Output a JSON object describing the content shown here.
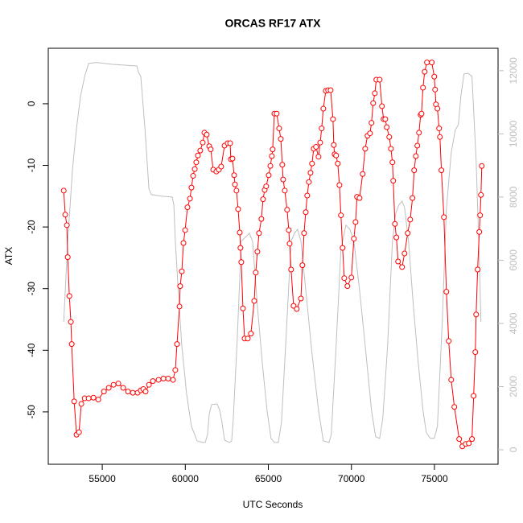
{
  "chart_data": {
    "type": "line",
    "title": "ORCAS RF17 ATX",
    "x_label": "UTC Seconds",
    "y_label": "ATX",
    "xlim": [
      51750,
      78830
    ],
    "ylim": [
      -58.5,
      9
    ],
    "y2lim": [
      -460,
      12710
    ],
    "xticks": [
      55000,
      60000,
      65000,
      70000,
      75000
    ],
    "yticks": [
      -50,
      -40,
      -30,
      -20,
      -10,
      0
    ],
    "y2ticks": [
      0,
      2000,
      4000,
      6000,
      8000,
      10000,
      12000
    ],
    "y2tick_color": "#bebebe",
    "series": [
      {
        "color": "#ff0000",
        "marker": "circle",
        "x": [
          52680,
          52770,
          52870,
          52920,
          53020,
          53110,
          53160,
          53310,
          53450,
          53600,
          53740,
          53940,
          54180,
          54470,
          54760,
          55100,
          55390,
          55680,
          55970,
          56260,
          56550,
          56840,
          57130,
          57320,
          57470,
          57610,
          57810,
          58050,
          58390,
          58680,
          58970,
          59260,
          59400,
          59500,
          59650,
          59690,
          59790,
          59890,
          59990,
          60130,
          60280,
          60370,
          60470,
          60570,
          60660,
          60760,
          60900,
          61050,
          61150,
          61290,
          61440,
          61530,
          61680,
          61870,
          62020,
          62160,
          62360,
          62550,
          62700,
          62740,
          62840,
          62940,
          62990,
          63080,
          63180,
          63280,
          63320,
          63370,
          63470,
          63570,
          63760,
          63950,
          64150,
          64240,
          64340,
          64440,
          64580,
          64680,
          64780,
          64870,
          65020,
          65120,
          65210,
          65260,
          65360,
          65500,
          65650,
          65750,
          65840,
          65890,
          65990,
          66130,
          66230,
          66280,
          66370,
          66520,
          66710,
          66960,
          67050,
          67150,
          67250,
          67340,
          67440,
          67540,
          67630,
          67730,
          67870,
          68020,
          68120,
          68210,
          68310,
          68460,
          68600,
          68750,
          68890,
          68940,
          68990,
          69080,
          69180,
          69280,
          69370,
          69470,
          69570,
          69760,
          70000,
          70150,
          70250,
          70340,
          70490,
          70680,
          70830,
          70970,
          71120,
          71210,
          71310,
          71410,
          71500,
          71700,
          71840,
          71940,
          72040,
          72130,
          72280,
          72380,
          72470,
          72520,
          72620,
          72710,
          72810,
          73050,
          73200,
          73390,
          73540,
          73680,
          73780,
          73880,
          73970,
          74070,
          74170,
          74220,
          74310,
          74410,
          74550,
          74840,
          74990,
          75040,
          75090,
          75180,
          75280,
          75330,
          75420,
          75570,
          75720,
          75860,
          76010,
          76200,
          76490,
          76680,
          76880,
          77070,
          77260,
          77360,
          77460,
          77510,
          77600,
          77700,
          77750,
          77800,
          77850
        ],
        "values": [
          -14.1,
          -18.0,
          -19.7,
          -24.9,
          -31.2,
          -35.4,
          -39.0,
          -48.3,
          -53.7,
          -53.3,
          -48.7,
          -47.8,
          -47.8,
          -47.7,
          -48.0,
          -46.7,
          -46.1,
          -45.6,
          -45.4,
          -46.1,
          -46.7,
          -46.9,
          -46.9,
          -46.5,
          -46.3,
          -46.7,
          -45.6,
          -45.0,
          -44.8,
          -44.6,
          -44.6,
          -44.8,
          -43.2,
          -39.0,
          -32.9,
          -29.6,
          -27.2,
          -22.6,
          -20.5,
          -16.8,
          -15.4,
          -13.6,
          -11.7,
          -10.6,
          -9.5,
          -8.4,
          -7.6,
          -6.3,
          -4.7,
          -5.0,
          -6.9,
          -7.4,
          -10.7,
          -11.0,
          -10.7,
          -10.2,
          -6.8,
          -6.4,
          -6.4,
          -9.0,
          -8.9,
          -11.6,
          -13.1,
          -14.1,
          -17.1,
          -20.9,
          -23.4,
          -25.7,
          -33.2,
          -38.1,
          -38.1,
          -37.3,
          -32.0,
          -27.4,
          -24.0,
          -21.0,
          -18.7,
          -15.5,
          -14.0,
          -13.4,
          -11.6,
          -10.1,
          -8.5,
          -7.4,
          -1.6,
          -1.6,
          -4.0,
          -5.7,
          -9.9,
          -12.3,
          -14.1,
          -17.2,
          -20.5,
          -22.7,
          -26.9,
          -32.8,
          -33.3,
          -31.6,
          -26.2,
          -21.0,
          -17.6,
          -14.9,
          -12.7,
          -11.2,
          -9.7,
          -7.3,
          -7.0,
          -8.6,
          -6.3,
          -4.0,
          -0.8,
          2.1,
          2.2,
          2.2,
          -2.5,
          -6.7,
          -8.2,
          -8.4,
          -9.7,
          -13.2,
          -18.1,
          -23.4,
          -28.3,
          -29.6,
          -28.2,
          -21.9,
          -19.2,
          -15.1,
          -15.3,
          -11.4,
          -7.3,
          -5.2,
          -4.8,
          -3.1,
          0.1,
          1.7,
          3.9,
          3.9,
          -0.4,
          -2.5,
          -2.5,
          -3.8,
          -5.4,
          -7.3,
          -9.5,
          -12.5,
          -19.5,
          -21.7,
          -25.6,
          -26.5,
          -24.3,
          -21.0,
          -18.8,
          -15.3,
          -10.8,
          -8.5,
          -6.8,
          -4.7,
          -1.8,
          -1.6,
          2.6,
          5.2,
          6.7,
          6.7,
          4.4,
          2.3,
          -0.1,
          -0.8,
          -4.0,
          -5.4,
          -10.8,
          -18.4,
          -30.5,
          -38.5,
          -44.8,
          -49.2,
          -54.4,
          -55.6,
          -55.2,
          -55.1,
          -54.4,
          -47.4,
          -40.3,
          -34.2,
          -26.9,
          -20.8,
          -18.1,
          -14.8,
          -10.1
        ]
      },
      {
        "color": "#bebebe",
        "axis": "y2",
        "x": [
          52680,
          52920,
          53210,
          53450,
          53690,
          53940,
          54180,
          54660,
          55630,
          57080,
          57180,
          57320,
          57570,
          57810,
          57950,
          58530,
          59210,
          59310,
          59400,
          59600,
          59790,
          60080,
          60370,
          60710,
          61050,
          61200,
          61340,
          61440,
          61580,
          61920,
          62070,
          62210,
          62360,
          62650,
          62790,
          62890,
          63130,
          63370,
          63620,
          63860,
          64050,
          64340,
          64630,
          64920,
          65160,
          65360,
          65600,
          65790,
          66040,
          66370,
          66570,
          66760,
          66960,
          67250,
          67630,
          68020,
          68310,
          68650,
          68790,
          69080,
          69370,
          69670,
          69910,
          70150,
          70490,
          70880,
          71210,
          71460,
          71700,
          71890,
          72180,
          72470,
          72670,
          72860,
          73050,
          73200,
          73440,
          73730,
          74020,
          74310,
          74510,
          74750,
          74990,
          75180,
          75470,
          75720,
          76010,
          76250,
          76440,
          76590,
          76780,
          77020,
          77260,
          77510,
          77700,
          77800
        ],
        "values": [
          4050,
          6600,
          8890,
          10170,
          11190,
          11820,
          12230,
          12260,
          12200,
          12150,
          11950,
          11820,
          10170,
          8260,
          8080,
          8030,
          8000,
          7750,
          6600,
          4820,
          3290,
          1760,
          740,
          280,
          230,
          230,
          480,
          1120,
          1430,
          1450,
          1250,
          870,
          310,
          230,
          280,
          990,
          3540,
          6600,
          6730,
          6850,
          6600,
          4560,
          2780,
          1250,
          360,
          230,
          230,
          870,
          3290,
          6600,
          6850,
          6980,
          6600,
          5070,
          3030,
          1250,
          280,
          230,
          480,
          3290,
          6340,
          7110,
          6980,
          6600,
          5070,
          3030,
          1250,
          410,
          360,
          990,
          3290,
          6600,
          7490,
          7750,
          7870,
          7670,
          6600,
          4560,
          2780,
          1250,
          540,
          360,
          360,
          740,
          4050,
          7620,
          9400,
          10120,
          10290,
          11190,
          11900,
          11920,
          11820,
          9150,
          6090,
          4050
        ]
      }
    ]
  }
}
